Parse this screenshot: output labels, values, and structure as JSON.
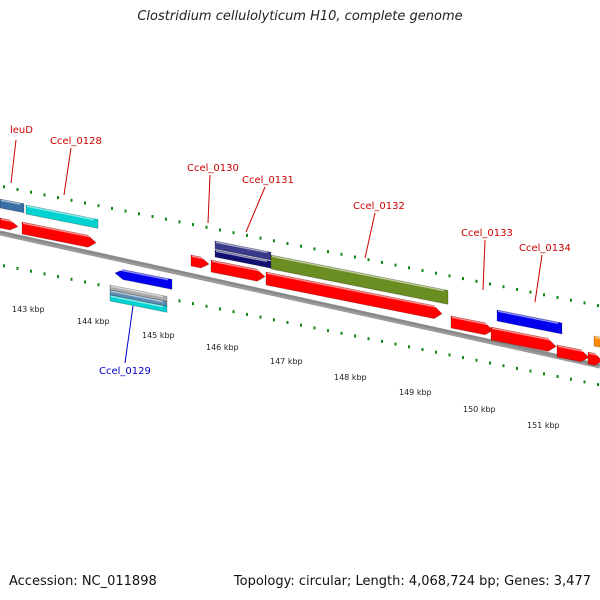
{
  "title": "Clostridium cellulolyticum H10, complete genome",
  "footer": {
    "accession": "Accession: NC_011898",
    "topology": "Topology: circular; Length: 4,068,724 bp; Genes: 3,477"
  },
  "colors": {
    "cds": "#ff0000",
    "backbone": "#888888",
    "gene_label_forward": "#cc0000",
    "gene_label_reverse": "#0000cc",
    "tick": "#118811"
  },
  "scale": {
    "labels": [
      "143 kbp",
      "144 kbp",
      "145 kbp",
      "146 kbp",
      "147 kbp",
      "148 kbp",
      "149 kbp",
      "150 kbp",
      "151 kbp"
    ]
  },
  "gene_labels": [
    {
      "name": "leuD",
      "strand": "forward"
    },
    {
      "name": "Ccel_0128",
      "strand": "forward"
    },
    {
      "name": "Ccel_0130",
      "strand": "forward"
    },
    {
      "name": "Ccel_0131",
      "strand": "forward"
    },
    {
      "name": "Ccel_0132",
      "strand": "forward"
    },
    {
      "name": "Ccel_0133",
      "strand": "forward"
    },
    {
      "name": "Ccel_0134",
      "strand": "forward"
    },
    {
      "name": "Ccel_0129",
      "strand": "reverse"
    }
  ],
  "features": [
    {
      "kind": "cog",
      "strand": "forward",
      "color": "#3a6ea5"
    },
    {
      "kind": "cog",
      "strand": "forward",
      "color": "#00d2d2"
    },
    {
      "kind": "cds",
      "strand": "forward",
      "color": "#ff0000"
    },
    {
      "kind": "cds",
      "strand": "forward",
      "color": "#ff0000"
    },
    {
      "kind": "cog",
      "strand": "forward",
      "color": "#3a3a8a"
    },
    {
      "kind": "cog",
      "strand": "forward",
      "color": "#101070"
    },
    {
      "kind": "cds",
      "strand": "forward",
      "color": "#ff0000"
    },
    {
      "kind": "cds",
      "strand": "forward",
      "color": "#ff0000"
    },
    {
      "kind": "cog",
      "strand": "forward",
      "color": "#6b8e23"
    },
    {
      "kind": "cds",
      "strand": "forward",
      "color": "#ff0000"
    },
    {
      "kind": "cds",
      "strand": "forward",
      "color": "#ff0000"
    },
    {
      "kind": "cog",
      "strand": "forward",
      "color": "#0000ee"
    },
    {
      "kind": "cds",
      "strand": "forward",
      "color": "#ff0000"
    },
    {
      "kind": "cds",
      "strand": "forward",
      "color": "#ff0000"
    },
    {
      "kind": "cog",
      "strand": "forward",
      "color": "#ff8c00"
    },
    {
      "kind": "cds",
      "strand": "forward",
      "color": "#ff0000"
    },
    {
      "kind": "cds",
      "strand": "reverse",
      "color": "#0000ee"
    },
    {
      "kind": "cog",
      "strand": "reverse",
      "color": "#aaaaaa"
    },
    {
      "kind": "cog",
      "strand": "reverse",
      "color": "#5a8ab0"
    },
    {
      "kind": "cog",
      "strand": "reverse",
      "color": "#00d2d2"
    }
  ]
}
